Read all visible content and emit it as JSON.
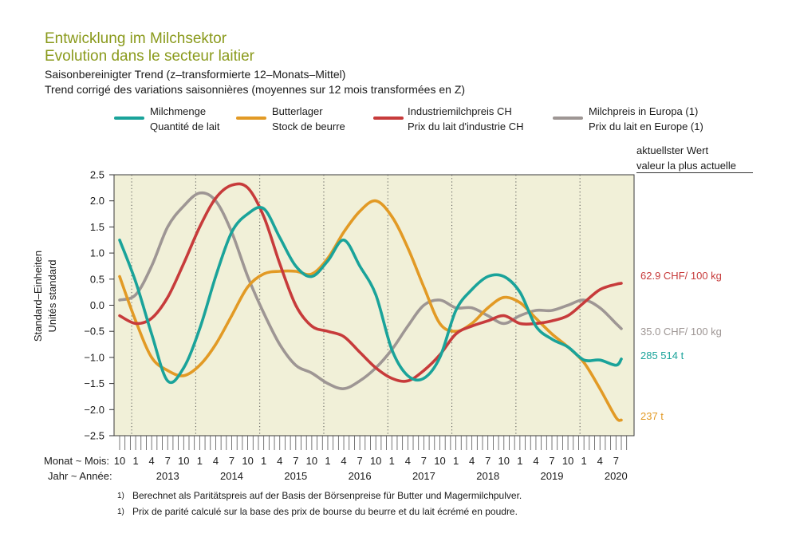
{
  "header": {
    "title_de": "Entwicklung im Milchsektor",
    "title_fr": "Evolution dans le secteur laitier",
    "subtitle_de": "Saisonbereinigter Trend (z–transformierte 12–Monats–Mittel)",
    "subtitle_fr": "Trend corrigé des variations saisonnières (moyennes sur 12 mois transformées en Z)"
  },
  "legend": [
    {
      "label_de": "Milchmenge",
      "label_fr": "Quantité de lait",
      "color": "#1aa39a"
    },
    {
      "label_de": "Butterlager",
      "label_fr": "Stock de beurre",
      "color": "#e29a25"
    },
    {
      "label_de": "Industriemilchpreis CH",
      "label_fr": "Prix du lait d'industrie CH",
      "color": "#c73b3b"
    },
    {
      "label_de": "Milchpreis in Europa (1)",
      "label_fr": "Prix du lait en Europe (1)",
      "color": "#9e9694"
    }
  ],
  "latest": {
    "header_de": "aktuellster Wert",
    "header_fr": "valeur la plus actuelle"
  },
  "axis": {
    "ylabel_de": "Standard–Einheiten",
    "ylabel_fr": "Unités standard",
    "month_label": "Monat ~ Mois:",
    "year_label": "Jahr ~ Année:"
  },
  "footnotes": {
    "num": "1)",
    "de": "Berechnet als Paritätspreis auf der Basis der Börsenpreise für Butter und Magermilchpulver.",
    "fr": "Prix de parité calculé sur la base des prix de bourse du beurre et du lait écrémé en poudre."
  },
  "chart_data": {
    "type": "line",
    "x": [
      "2012-10",
      "2013-01",
      "2013-04",
      "2013-07",
      "2013-10",
      "2014-01",
      "2014-04",
      "2014-07",
      "2014-10",
      "2015-01",
      "2015-04",
      "2015-07",
      "2015-10",
      "2016-01",
      "2016-04",
      "2016-07",
      "2016-10",
      "2017-01",
      "2017-04",
      "2017-07",
      "2017-10",
      "2018-01",
      "2018-04",
      "2018-07",
      "2018-10",
      "2019-01",
      "2019-04",
      "2019-07",
      "2019-10",
      "2020-01",
      "2020-04",
      "2020-07",
      "2020-08"
    ],
    "ylim": [
      -2.5,
      2.5
    ],
    "yticks": [
      "2.5",
      "2.0",
      "1.5",
      "1.0",
      "0.5",
      "0.0",
      "−0.5",
      "−1.0",
      "−1.5",
      "−2.0",
      "−2.5"
    ],
    "month_ticks": [
      "10",
      "1",
      "4",
      "7",
      "10",
      "1",
      "4",
      "7",
      "10",
      "1",
      "4",
      "7",
      "10",
      "1",
      "4",
      "7",
      "10",
      "1",
      "4",
      "7",
      "10",
      "1",
      "4",
      "7",
      "10",
      "1",
      "4",
      "7",
      "10",
      "1",
      "4",
      "7"
    ],
    "years": [
      "2013",
      "2014",
      "2015",
      "2016",
      "2017",
      "2018",
      "2019",
      "2020"
    ],
    "grid": "vertical dotted at January",
    "series": [
      {
        "name": "Milchmenge / Quantité de lait",
        "color": "#1aa39a",
        "end_label": "285 514 t",
        "values": [
          1.25,
          0.45,
          -0.55,
          -1.45,
          -1.2,
          -0.45,
          0.55,
          1.4,
          1.75,
          1.85,
          1.3,
          0.75,
          0.55,
          0.85,
          1.25,
          0.75,
          0.2,
          -0.85,
          -1.35,
          -1.4,
          -1.0,
          -0.1,
          0.3,
          0.55,
          0.55,
          0.25,
          -0.4,
          -0.65,
          -0.8,
          -1.05,
          -1.05,
          -1.15,
          -1.03
        ]
      },
      {
        "name": "Butterlager / Stock de beurre",
        "color": "#e29a25",
        "end_label": "237 t",
        "values": [
          0.55,
          -0.3,
          -1.0,
          -1.25,
          -1.35,
          -1.15,
          -0.75,
          -0.2,
          0.35,
          0.6,
          0.65,
          0.65,
          0.6,
          0.9,
          1.4,
          1.8,
          2.0,
          1.7,
          1.1,
          0.35,
          -0.35,
          -0.5,
          -0.35,
          -0.05,
          0.15,
          0.05,
          -0.25,
          -0.55,
          -0.8,
          -1.1,
          -1.6,
          -2.15,
          -2.2
        ]
      },
      {
        "name": "Industriemilchpreis CH / Prix du lait d'industrie CH",
        "color": "#c73b3b",
        "end_label": "62.9 CHF/ 100 kg",
        "values": [
          -0.2,
          -0.35,
          -0.25,
          0.15,
          0.8,
          1.5,
          2.05,
          2.3,
          2.25,
          1.7,
          0.8,
          0.0,
          -0.4,
          -0.5,
          -0.6,
          -0.9,
          -1.2,
          -1.4,
          -1.45,
          -1.25,
          -0.95,
          -0.55,
          -0.4,
          -0.3,
          -0.2,
          -0.35,
          -0.35,
          -0.3,
          -0.2,
          0.05,
          0.3,
          0.4,
          0.42
        ]
      },
      {
        "name": "Milchpreis in Europa (1) / Prix du lait en Europe (1)",
        "color": "#9e9694",
        "end_label": "35.0 CHF/ 100 kg",
        "values": [
          0.1,
          0.2,
          0.75,
          1.5,
          1.9,
          2.15,
          2.0,
          1.4,
          0.55,
          -0.15,
          -0.75,
          -1.15,
          -1.3,
          -1.5,
          -1.6,
          -1.45,
          -1.2,
          -0.85,
          -0.4,
          0.0,
          0.1,
          -0.05,
          -0.05,
          -0.2,
          -0.35,
          -0.2,
          -0.1,
          -0.1,
          0.0,
          0.1,
          -0.05,
          -0.35,
          -0.45
        ]
      }
    ]
  }
}
